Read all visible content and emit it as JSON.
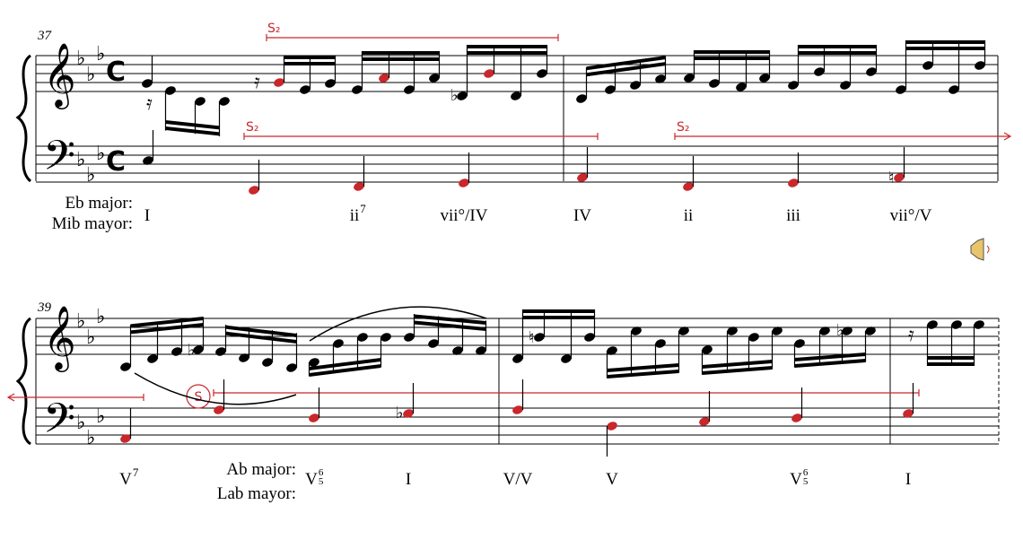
{
  "systems": [
    {
      "measure_number": "37",
      "sequence_labels": [
        "S₂",
        "S₂",
        "S₂"
      ],
      "key": {
        "en": "Eb major:",
        "es": "Mib mayor:"
      },
      "chords": [
        {
          "text": "I"
        },
        {
          "text": "ii",
          "sup": "7"
        },
        {
          "text": "vii°/IV"
        },
        {
          "text": "IV"
        },
        {
          "text": "ii"
        },
        {
          "text": "iii"
        },
        {
          "text": "vii°/V"
        }
      ]
    },
    {
      "measure_number": "39",
      "sequence_labels": [
        "S"
      ],
      "key": {
        "en": "Ab major:",
        "es": "Lab mayor:"
      },
      "chords": [
        {
          "text": "V",
          "sup": "7"
        },
        {
          "text": "V",
          "fig": [
            "6",
            "5"
          ]
        },
        {
          "text": "I"
        },
        {
          "text": "V/V"
        },
        {
          "text": "V"
        },
        {
          "text": "V",
          "fig": [
            "6",
            "5"
          ]
        },
        {
          "text": "I"
        }
      ]
    }
  ]
}
